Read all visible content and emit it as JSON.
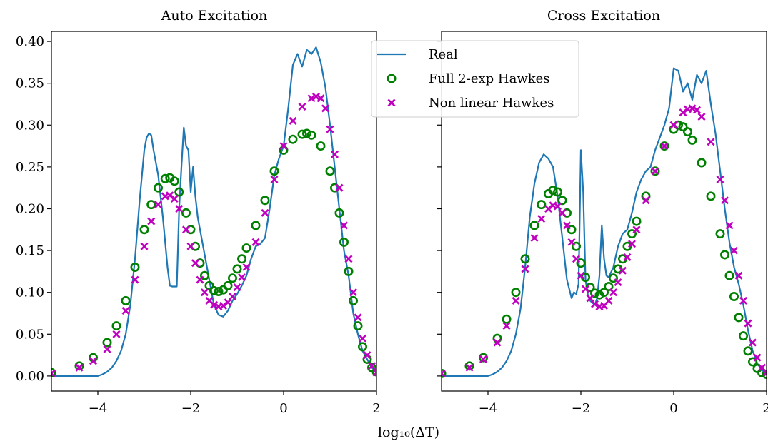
{
  "chart_data": [
    {
      "type": "line",
      "title": "Auto Excitation",
      "xlabel": "",
      "ylabel": "",
      "xlim": [
        -5,
        2
      ],
      "ylim": [
        -0.018,
        0.412
      ],
      "xticks": [
        -4,
        -2,
        0,
        2
      ],
      "xtick_labels": [
        "−4",
        "−2",
        "0",
        "2"
      ],
      "yticks": [
        0.0,
        0.05,
        0.1,
        0.15,
        0.2,
        0.25,
        0.3,
        0.35,
        0.4
      ],
      "ytick_labels": [
        "0.00",
        "0.05",
        "0.10",
        "0.15",
        "0.20",
        "0.25",
        "0.30",
        "0.35",
        "0.40"
      ],
      "series": [
        {
          "name": "Real",
          "style": "line",
          "color": "#1f77b4",
          "x": [
            -5.0,
            -4.5,
            -4.2,
            -4.0,
            -3.9,
            -3.8,
            -3.7,
            -3.6,
            -3.5,
            -3.4,
            -3.3,
            -3.2,
            -3.1,
            -3.0,
            -2.95,
            -2.9,
            -2.85,
            -2.8,
            -2.7,
            -2.6,
            -2.5,
            -2.45,
            -2.4,
            -2.3,
            -2.25,
            -2.2,
            -2.15,
            -2.1,
            -2.05,
            -2.0,
            -1.95,
            -1.9,
            -1.85,
            -1.8,
            -1.7,
            -1.6,
            -1.5,
            -1.4,
            -1.3,
            -1.2,
            -1.1,
            -1.0,
            -0.9,
            -0.8,
            -0.7,
            -0.6,
            -0.5,
            -0.4,
            -0.3,
            -0.2,
            -0.1,
            0.0,
            0.1,
            0.2,
            0.3,
            0.4,
            0.5,
            0.6,
            0.7,
            0.8,
            0.9,
            1.0,
            1.1,
            1.2,
            1.3,
            1.4,
            1.5,
            1.6,
            1.7,
            1.8,
            1.9,
            2.0
          ],
          "y": [
            0.0,
            0.0,
            0.0,
            0.0,
            0.002,
            0.005,
            0.01,
            0.018,
            0.03,
            0.05,
            0.085,
            0.14,
            0.21,
            0.27,
            0.285,
            0.29,
            0.288,
            0.27,
            0.24,
            0.19,
            0.13,
            0.108,
            0.107,
            0.107,
            0.2,
            0.25,
            0.297,
            0.275,
            0.27,
            0.22,
            0.25,
            0.215,
            0.19,
            0.175,
            0.145,
            0.115,
            0.085,
            0.073,
            0.071,
            0.078,
            0.09,
            0.098,
            0.108,
            0.12,
            0.14,
            0.155,
            0.158,
            0.165,
            0.2,
            0.24,
            0.26,
            0.275,
            0.32,
            0.372,
            0.385,
            0.37,
            0.39,
            0.385,
            0.393,
            0.375,
            0.345,
            0.3,
            0.25,
            0.2,
            0.15,
            0.12,
            0.075,
            0.05,
            0.03,
            0.02,
            0.01,
            0.005
          ]
        },
        {
          "name": "Full 2-exp Hawkes",
          "style": "circle",
          "color": "#008000",
          "x": [
            -5.0,
            -4.4,
            -4.1,
            -3.8,
            -3.6,
            -3.4,
            -3.2,
            -3.0,
            -2.85,
            -2.7,
            -2.55,
            -2.45,
            -2.35,
            -2.25,
            -2.1,
            -2.0,
            -1.9,
            -1.8,
            -1.7,
            -1.6,
            -1.5,
            -1.4,
            -1.3,
            -1.2,
            -1.1,
            -1.0,
            -0.9,
            -0.8,
            -0.6,
            -0.4,
            -0.2,
            0.0,
            0.2,
            0.4,
            0.5,
            0.6,
            0.8,
            1.0,
            1.1,
            1.2,
            1.3,
            1.4,
            1.5,
            1.6,
            1.7,
            1.8,
            1.9,
            2.0
          ],
          "y": [
            0.004,
            0.012,
            0.022,
            0.04,
            0.06,
            0.09,
            0.13,
            0.175,
            0.205,
            0.225,
            0.236,
            0.237,
            0.233,
            0.22,
            0.195,
            0.175,
            0.155,
            0.135,
            0.12,
            0.108,
            0.102,
            0.101,
            0.103,
            0.108,
            0.117,
            0.128,
            0.14,
            0.153,
            0.18,
            0.21,
            0.245,
            0.27,
            0.283,
            0.289,
            0.29,
            0.288,
            0.275,
            0.245,
            0.225,
            0.195,
            0.16,
            0.125,
            0.09,
            0.06,
            0.035,
            0.02,
            0.01,
            0.005
          ]
        },
        {
          "name": "Non linear Hawkes",
          "style": "x",
          "color": "#bf00bf",
          "x": [
            -5.0,
            -4.4,
            -4.1,
            -3.8,
            -3.6,
            -3.4,
            -3.2,
            -3.0,
            -2.85,
            -2.7,
            -2.55,
            -2.45,
            -2.35,
            -2.25,
            -2.1,
            -2.0,
            -1.9,
            -1.8,
            -1.7,
            -1.6,
            -1.5,
            -1.4,
            -1.3,
            -1.2,
            -1.1,
            -1.0,
            -0.9,
            -0.8,
            -0.6,
            -0.4,
            -0.2,
            0.0,
            0.2,
            0.4,
            0.6,
            0.7,
            0.8,
            0.9,
            1.0,
            1.1,
            1.2,
            1.3,
            1.4,
            1.5,
            1.6,
            1.7,
            1.8,
            1.9,
            2.0
          ],
          "y": [
            0.003,
            0.01,
            0.018,
            0.032,
            0.05,
            0.078,
            0.115,
            0.155,
            0.185,
            0.205,
            0.215,
            0.216,
            0.212,
            0.2,
            0.175,
            0.155,
            0.135,
            0.115,
            0.1,
            0.09,
            0.085,
            0.083,
            0.084,
            0.088,
            0.095,
            0.106,
            0.118,
            0.13,
            0.16,
            0.195,
            0.235,
            0.275,
            0.305,
            0.322,
            0.332,
            0.334,
            0.332,
            0.32,
            0.295,
            0.265,
            0.225,
            0.18,
            0.14,
            0.1,
            0.07,
            0.045,
            0.025,
            0.012,
            0.004
          ]
        }
      ]
    },
    {
      "type": "line",
      "title": "Cross Excitation",
      "xlabel": "",
      "ylabel": "",
      "xlim": [
        -5,
        2
      ],
      "ylim": [
        -0.018,
        0.412
      ],
      "xticks": [
        -4,
        -2,
        0,
        2
      ],
      "xtick_labels": [
        "−4",
        "−2",
        "0",
        "2"
      ],
      "series": [
        {
          "name": "Real",
          "style": "line",
          "color": "#1f77b4",
          "x": [
            -5.0,
            -4.5,
            -4.2,
            -4.0,
            -3.9,
            -3.8,
            -3.7,
            -3.6,
            -3.5,
            -3.4,
            -3.3,
            -3.2,
            -3.1,
            -3.0,
            -2.9,
            -2.8,
            -2.7,
            -2.6,
            -2.5,
            -2.4,
            -2.3,
            -2.2,
            -2.15,
            -2.1,
            -2.05,
            -2.0,
            -1.95,
            -1.9,
            -1.85,
            -1.8,
            -1.7,
            -1.65,
            -1.6,
            -1.55,
            -1.5,
            -1.45,
            -1.4,
            -1.3,
            -1.2,
            -1.1,
            -1.0,
            -0.9,
            -0.8,
            -0.7,
            -0.6,
            -0.5,
            -0.4,
            -0.3,
            -0.2,
            -0.1,
            0.0,
            0.1,
            0.2,
            0.3,
            0.4,
            0.5,
            0.6,
            0.7,
            0.8,
            0.9,
            1.0,
            1.1,
            1.2,
            1.3,
            1.4,
            1.5,
            1.6,
            1.7,
            1.8,
            1.9,
            2.0
          ],
          "y": [
            0.0,
            0.0,
            0.0,
            0.0,
            0.002,
            0.005,
            0.01,
            0.018,
            0.03,
            0.05,
            0.08,
            0.13,
            0.19,
            0.23,
            0.255,
            0.265,
            0.26,
            0.25,
            0.215,
            0.165,
            0.115,
            0.093,
            0.1,
            0.098,
            0.11,
            0.27,
            0.22,
            0.115,
            0.097,
            0.09,
            0.085,
            0.093,
            0.12,
            0.18,
            0.14,
            0.12,
            0.118,
            0.13,
            0.155,
            0.17,
            0.175,
            0.195,
            0.22,
            0.235,
            0.245,
            0.25,
            0.27,
            0.285,
            0.3,
            0.32,
            0.368,
            0.365,
            0.34,
            0.35,
            0.33,
            0.36,
            0.35,
            0.365,
            0.325,
            0.29,
            0.245,
            0.2,
            0.16,
            0.13,
            0.11,
            0.085,
            0.055,
            0.03,
            0.015,
            0.007,
            0.003
          ]
        },
        {
          "name": "Full 2-exp Hawkes",
          "style": "circle",
          "color": "#008000",
          "x": [
            -5.0,
            -4.4,
            -4.1,
            -3.8,
            -3.6,
            -3.4,
            -3.2,
            -3.0,
            -2.85,
            -2.7,
            -2.6,
            -2.5,
            -2.4,
            -2.3,
            -2.2,
            -2.1,
            -2.0,
            -1.9,
            -1.8,
            -1.7,
            -1.6,
            -1.5,
            -1.4,
            -1.3,
            -1.2,
            -1.1,
            -1.0,
            -0.9,
            -0.8,
            -0.6,
            -0.4,
            -0.2,
            0.0,
            0.1,
            0.2,
            0.3,
            0.4,
            0.6,
            0.8,
            1.0,
            1.1,
            1.2,
            1.3,
            1.4,
            1.5,
            1.6,
            1.7,
            1.8,
            1.9,
            2.0
          ],
          "y": [
            0.003,
            0.012,
            0.022,
            0.045,
            0.068,
            0.1,
            0.14,
            0.18,
            0.205,
            0.218,
            0.222,
            0.22,
            0.21,
            0.195,
            0.175,
            0.155,
            0.135,
            0.118,
            0.106,
            0.099,
            0.097,
            0.1,
            0.107,
            0.117,
            0.128,
            0.14,
            0.155,
            0.17,
            0.185,
            0.215,
            0.245,
            0.275,
            0.295,
            0.3,
            0.298,
            0.292,
            0.282,
            0.255,
            0.215,
            0.17,
            0.145,
            0.12,
            0.095,
            0.07,
            0.048,
            0.03,
            0.017,
            0.009,
            0.004,
            0.002
          ]
        },
        {
          "name": "Non linear Hawkes",
          "style": "x",
          "color": "#bf00bf",
          "x": [
            -5.0,
            -4.4,
            -4.1,
            -3.8,
            -3.6,
            -3.4,
            -3.2,
            -3.0,
            -2.85,
            -2.7,
            -2.6,
            -2.5,
            -2.4,
            -2.3,
            -2.2,
            -2.1,
            -2.0,
            -1.9,
            -1.8,
            -1.7,
            -1.6,
            -1.5,
            -1.4,
            -1.3,
            -1.2,
            -1.1,
            -1.0,
            -0.9,
            -0.8,
            -0.6,
            -0.4,
            -0.2,
            0.0,
            0.2,
            0.3,
            0.4,
            0.5,
            0.6,
            0.8,
            1.0,
            1.1,
            1.2,
            1.3,
            1.4,
            1.5,
            1.6,
            1.7,
            1.8,
            1.9,
            2.0
          ],
          "y": [
            0.003,
            0.01,
            0.02,
            0.04,
            0.06,
            0.09,
            0.128,
            0.165,
            0.188,
            0.2,
            0.204,
            0.203,
            0.195,
            0.18,
            0.16,
            0.14,
            0.12,
            0.104,
            0.093,
            0.086,
            0.083,
            0.084,
            0.09,
            0.1,
            0.112,
            0.126,
            0.142,
            0.158,
            0.175,
            0.21,
            0.245,
            0.275,
            0.3,
            0.315,
            0.319,
            0.32,
            0.318,
            0.31,
            0.28,
            0.235,
            0.21,
            0.18,
            0.15,
            0.12,
            0.09,
            0.063,
            0.04,
            0.022,
            0.01,
            0.004
          ]
        }
      ]
    }
  ],
  "figure": {
    "xlabel": "log₁₀(ΔT)",
    "legend": {
      "placement": "top-center",
      "entries": [
        {
          "label": "Real",
          "marker": "line",
          "color": "#1f77b4"
        },
        {
          "label": "Full 2-exp Hawkes",
          "marker": "circle",
          "color": "#008000"
        },
        {
          "label": "Non linear Hawkes",
          "marker": "x",
          "color": "#bf00bf"
        }
      ]
    }
  }
}
